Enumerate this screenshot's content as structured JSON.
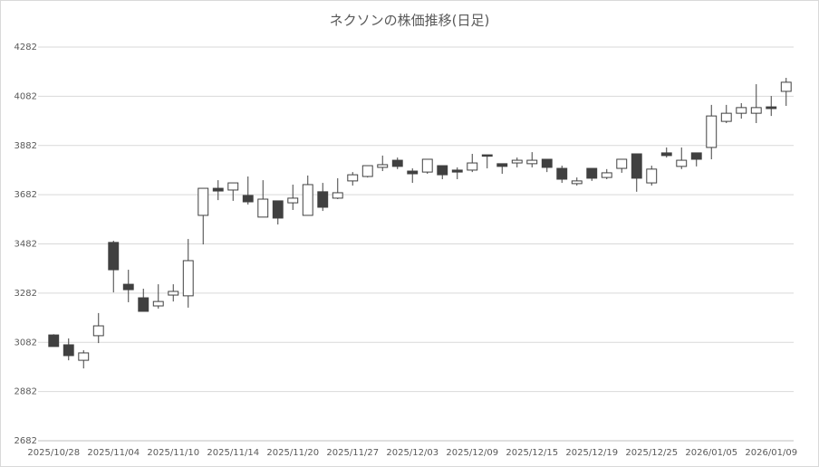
{
  "chart_data": {
    "type": "candlestick",
    "title": "ネクソンの株価推移(日足)",
    "categories": [
      "2025/10/28",
      null,
      null,
      null,
      "2025/11/04",
      null,
      null,
      null,
      "2025/11/10",
      null,
      null,
      null,
      "2025/11/14",
      null,
      null,
      null,
      "2025/11/20",
      null,
      null,
      null,
      "2025/11/27",
      null,
      null,
      null,
      "2025/12/03",
      null,
      null,
      null,
      "2025/12/09",
      null,
      null,
      null,
      "2025/12/15",
      null,
      null,
      null,
      "2025/12/19",
      null,
      null,
      null,
      "2025/12/25",
      null,
      null,
      null,
      "2026/01/05",
      null,
      null,
      null,
      "2026/01/09",
      null
    ],
    "open": [
      3112,
      3072,
      3009,
      3109,
      3488,
      3318,
      3263,
      3230,
      3274,
      3271,
      3598,
      3708,
      3701,
      3679,
      3591,
      3657,
      3649,
      3598,
      3694,
      3668,
      3738,
      3756,
      3793,
      3822,
      3778,
      3774,
      3800,
      3782,
      3782,
      3844,
      3808,
      3811,
      3808,
      3826,
      3789,
      3727,
      3789,
      3752,
      3789,
      3848,
      3730,
      3852,
      3797,
      3852,
      3874,
      3980,
      4013,
      4013,
      4039,
      4102
    ],
    "high": [
      3115,
      3098,
      3050,
      3201,
      3495,
      3377,
      3300,
      3318,
      3318,
      3502,
      3708,
      3741,
      3730,
      3756,
      3741,
      3657,
      3723,
      3760,
      3730,
      3749,
      3774,
      3800,
      3841,
      3833,
      3789,
      3826,
      3800,
      3793,
      3848,
      3844,
      3808,
      3833,
      3855,
      3826,
      3800,
      3752,
      3789,
      3786,
      3826,
      3848,
      3800,
      3874,
      3874,
      3852,
      4047,
      4047,
      4054,
      4131,
      4083,
      4157
    ],
    "low": [
      3065,
      3009,
      2976,
      3079,
      3285,
      3245,
      3208,
      3219,
      3248,
      3223,
      3480,
      3660,
      3657,
      3642,
      3591,
      3561,
      3620,
      3598,
      3616,
      3664,
      3719,
      3752,
      3778,
      3786,
      3730,
      3767,
      3745,
      3745,
      3774,
      3789,
      3767,
      3793,
      3793,
      3774,
      3730,
      3719,
      3738,
      3745,
      3771,
      3694,
      3719,
      3833,
      3786,
      3797,
      3826,
      3973,
      3991,
      3973,
      4002,
      4043
    ],
    "close": [
      3065,
      3028,
      3039,
      3149,
      3377,
      3296,
      3208,
      3248,
      3289,
      3414,
      3708,
      3697,
      3730,
      3653,
      3664,
      3587,
      3668,
      3723,
      3631,
      3690,
      3763,
      3800,
      3804,
      3797,
      3767,
      3826,
      3763,
      3774,
      3811,
      3841,
      3797,
      3822,
      3822,
      3793,
      3745,
      3738,
      3749,
      3771,
      3826,
      3749,
      3786,
      3841,
      3822,
      3826,
      4002,
      4013,
      4036,
      4036,
      4032,
      4139
    ],
    "up_color": "#ffffff",
    "down_color": "#404040",
    "outline_color": "#404040",
    "ylim": [
      2682,
      4282
    ],
    "yticks": [
      2682,
      2882,
      3082,
      3282,
      3482,
      3682,
      3882,
      4082,
      4282
    ],
    "grid": true
  }
}
